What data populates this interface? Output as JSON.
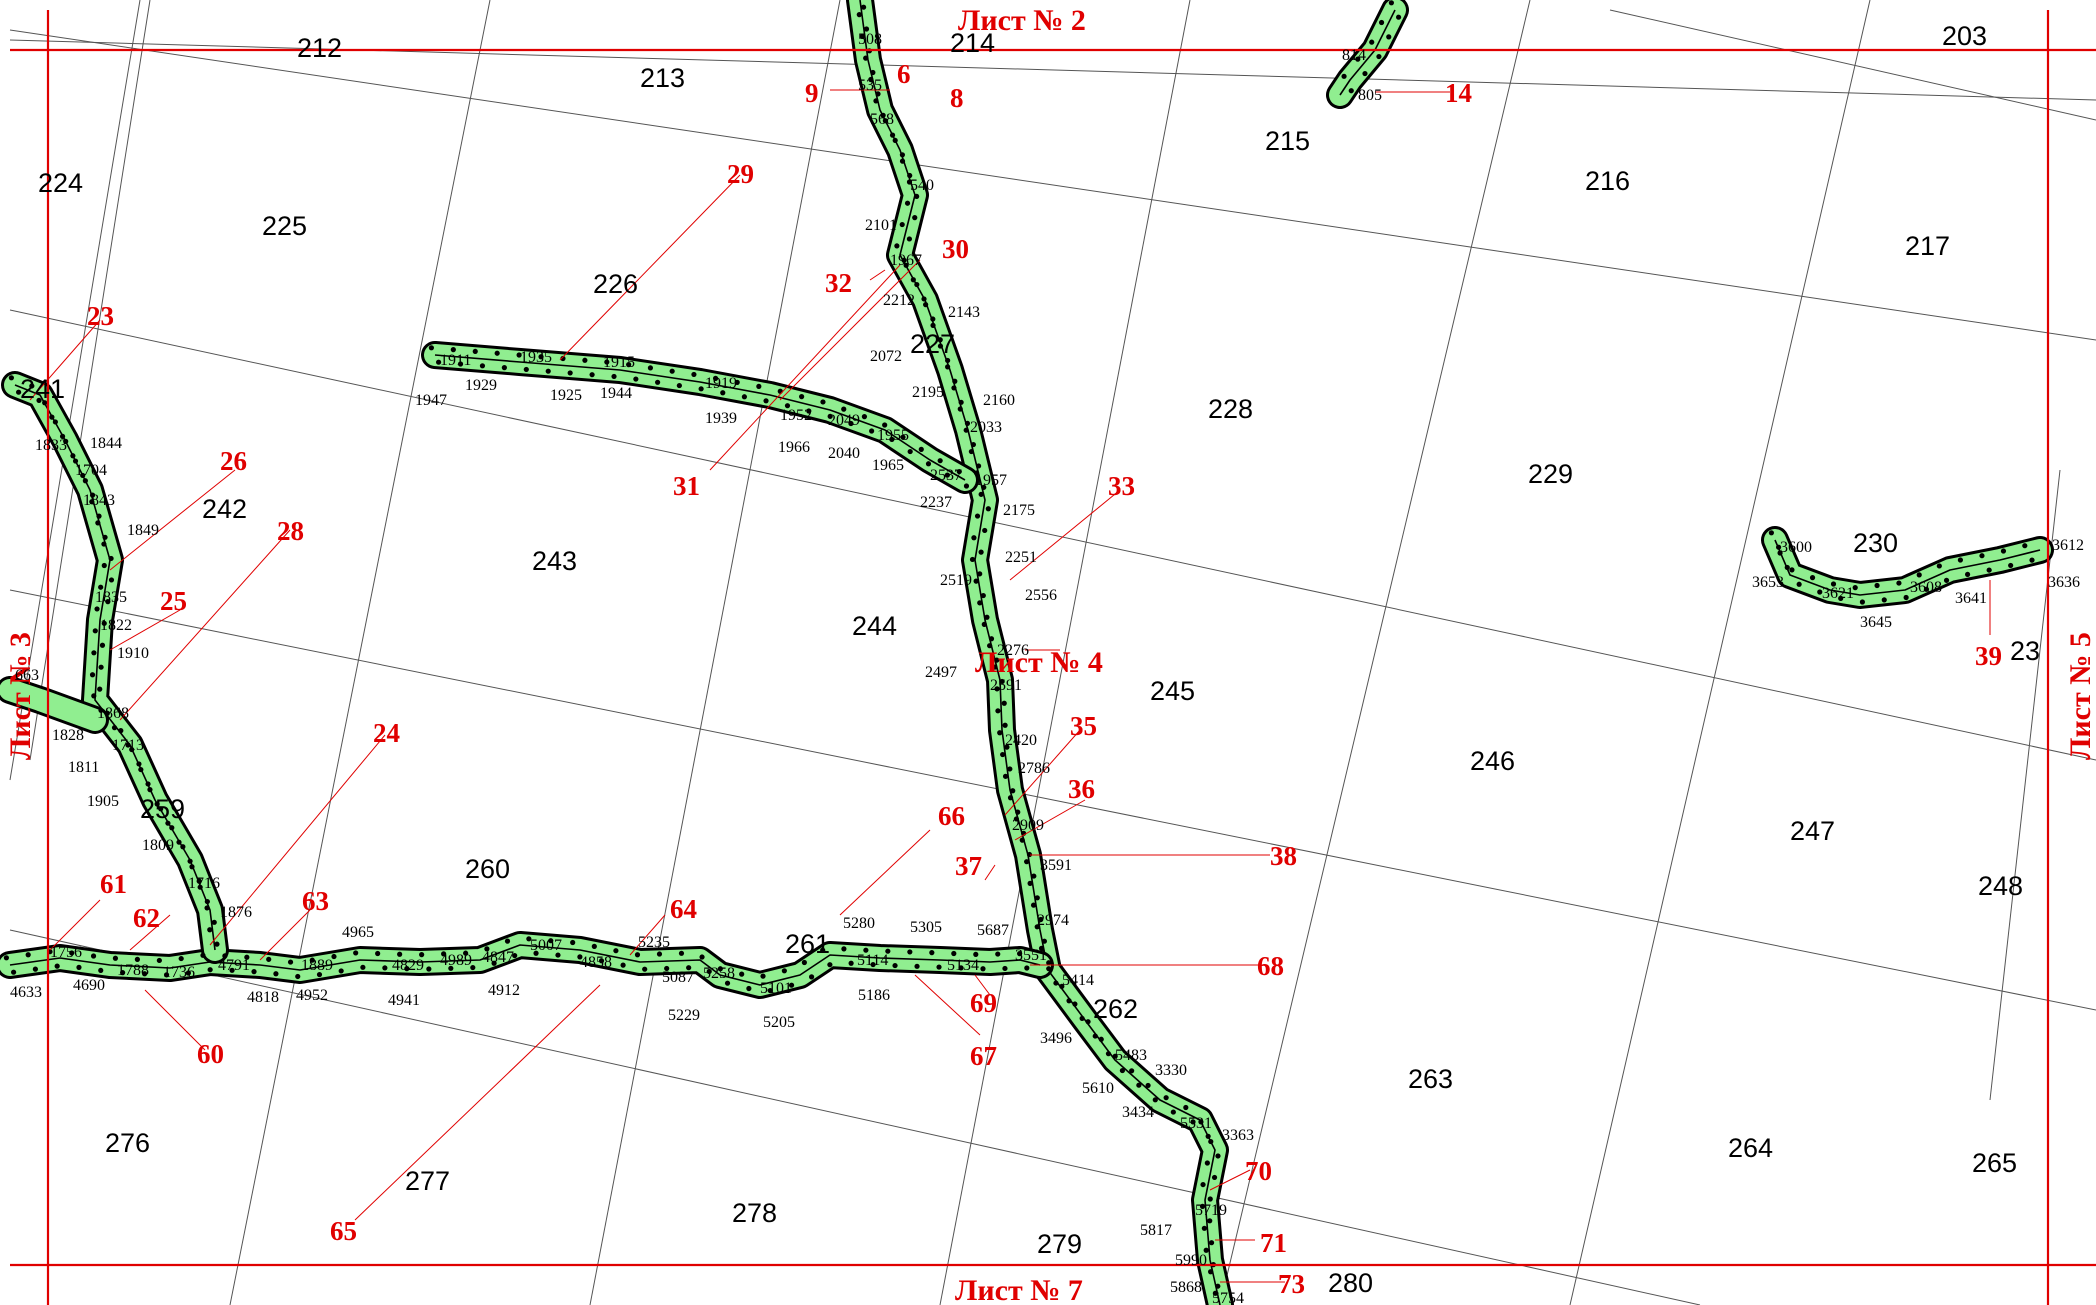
{
  "sheets": [
    {
      "id": "top",
      "label": "Лист № 2"
    },
    {
      "id": "bottom",
      "label": "Лист № 7"
    },
    {
      "id": "left",
      "label": "Лист № 3"
    },
    {
      "id": "right",
      "label": "Лист № 5"
    },
    {
      "id": "center",
      "label": "Лист № 4"
    }
  ],
  "parcels": [
    "203",
    "212",
    "213",
    "214",
    "215",
    "216",
    "217",
    "224",
    "225",
    "226",
    "227",
    "228",
    "229",
    "230",
    "23",
    "241",
    "242",
    "243",
    "244",
    "245",
    "246",
    "247",
    "248",
    "259",
    "260",
    "261",
    "262",
    "263",
    "264",
    "265",
    "276",
    "277",
    "278",
    "279",
    "280"
  ],
  "red_labels": [
    "6",
    "8",
    "9",
    "14",
    "23",
    "24",
    "25",
    "26",
    "28",
    "29",
    "30",
    "31",
    "32",
    "33",
    "35",
    "36",
    "37",
    "38",
    "39",
    "60",
    "61",
    "62",
    "63",
    "64",
    "65",
    "66",
    "67",
    "68",
    "69",
    "70",
    "71",
    "73"
  ],
  "point_labels": [
    "508",
    "535",
    "568",
    "540",
    "2101",
    "1967",
    "2212",
    "2143",
    "2072",
    "2195",
    "2160",
    "2033",
    "1957",
    "2175",
    "2251",
    "2556",
    "2519",
    "2497",
    "2276",
    "2591",
    "2420",
    "2786",
    "2909",
    "3591",
    "2974",
    "3551",
    "5414",
    "3496",
    "5483",
    "3330",
    "5610",
    "3434",
    "5531",
    "3363",
    "5719",
    "5817",
    "5990",
    "5868",
    "5754",
    "814",
    "805",
    "1911",
    "1935",
    "1915",
    "1919",
    "1929",
    "1925",
    "1944",
    "1947",
    "1939",
    "1952",
    "2049",
    "1955",
    "1966",
    "2040",
    "1965",
    "2537",
    "2237",
    "1833",
    "1844",
    "1704",
    "1843",
    "1849",
    "1835",
    "1822",
    "1910",
    "1868",
    "1828",
    "1713",
    "1811",
    "1905",
    "1809",
    "1716",
    "1876",
    "663",
    "1756",
    "4633",
    "4690",
    "1788",
    "1736",
    "4791",
    "4818",
    "1889",
    "4952",
    "4965",
    "4829",
    "4941",
    "4989",
    "4847",
    "4912",
    "5007",
    "4858",
    "5235",
    "5087",
    "5229",
    "5258",
    "5101",
    "5205",
    "5280",
    "5305",
    "5114",
    "5186",
    "5687",
    "5134",
    "3600",
    "3653",
    "3621",
    "3645",
    "3608",
    "3641",
    "3612",
    "3636"
  ],
  "colors": {
    "road_fill": "#90ee90",
    "road_edge": "#000000",
    "sheet_line": "#e00000",
    "grid_line": "#555555",
    "label_red": "#e00000"
  }
}
